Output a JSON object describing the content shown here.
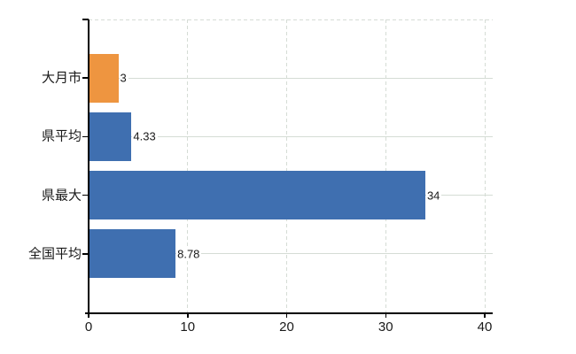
{
  "chart": {
    "background_color": "#ffffff",
    "axis_color": "#000000",
    "grid_color": "#d5dcd5",
    "highlight_bar_color": "#EE9540",
    "default_bar_color": "#3F6FB0",
    "label_color": "#1a1a1a"
  },
  "chart_data": {
    "type": "bar",
    "orientation": "horizontal",
    "title": "",
    "xlabel": "",
    "ylabel": "",
    "categories": [
      "大月市",
      "県平均",
      "県最大",
      "全国平均"
    ],
    "values": [
      3,
      4.33,
      34,
      8.78
    ],
    "value_labels": [
      "3",
      "4.33",
      "34",
      "8.78"
    ],
    "bar_colors": [
      "#EE9540",
      "#3F6FB0",
      "#3F6FB0",
      "#3F6FB0"
    ],
    "xlim": [
      0,
      40
    ],
    "x_ticks": [
      0,
      10,
      20,
      30,
      40
    ],
    "x_tick_labels": [
      "0",
      "10",
      "20",
      "30",
      "40"
    ],
    "grid": "on",
    "legend": "none"
  }
}
